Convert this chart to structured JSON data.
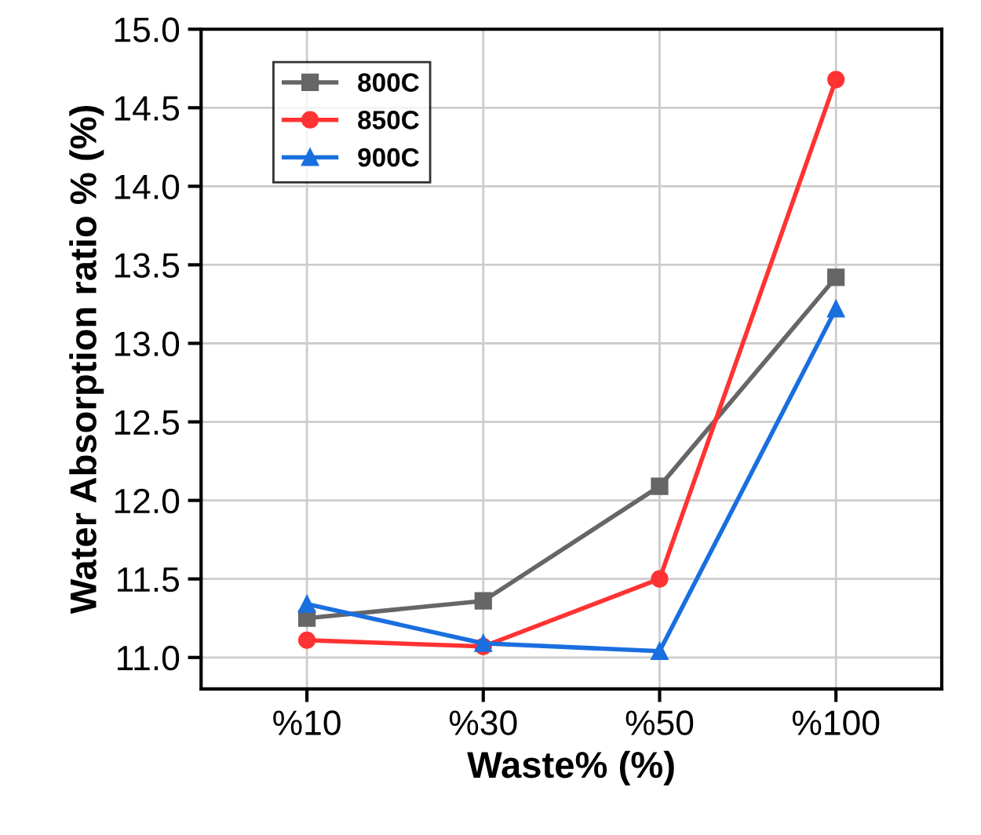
{
  "chart_data": {
    "type": "line",
    "xlabel": "Waste% (%)",
    "ylabel": "Water Absorption ratio % (%)",
    "categories": [
      "%10",
      "%30",
      "%50",
      "%100"
    ],
    "series": [
      {
        "name": "800C",
        "color": "#666666",
        "marker": "square",
        "values": [
          11.25,
          11.36,
          12.09,
          13.42
        ]
      },
      {
        "name": "850C",
        "color": "#ff3333",
        "marker": "circle",
        "values": [
          11.11,
          11.07,
          11.5,
          14.68
        ]
      },
      {
        "name": "900C",
        "color": "#1a6fdf",
        "marker": "triangle",
        "values": [
          11.34,
          11.09,
          11.04,
          13.22
        ]
      }
    ],
    "ylim": [
      10.8,
      15.0
    ],
    "yticks": [
      {
        "value": 11,
        "label": "11.0"
      },
      11.5,
      {
        "value": 12,
        "label": "12.0"
      },
      12.5,
      {
        "value": 13,
        "label": "13.0"
      },
      13.5,
      {
        "value": 14,
        "label": "14.0"
      },
      14.5,
      {
        "value": 15,
        "label": "15.0"
      }
    ],
    "grid": true,
    "legend": "top left",
    "line_style": "solid"
  }
}
